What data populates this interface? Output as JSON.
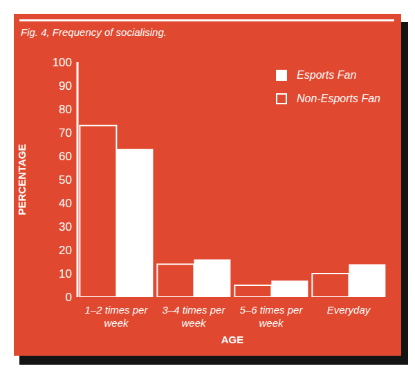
{
  "chart_data": {
    "type": "bar",
    "title": "Fig. 4, Frequency of socialising.",
    "x_label": "AGE",
    "y_label": "PERCENTAGE",
    "categories": [
      "1–2 times per week",
      "3–4 times per week",
      "5–6 times per week",
      "Everyday"
    ],
    "series": [
      {
        "name": "Esports Fan",
        "color": "#ffffff",
        "marker": "filled",
        "values": [
          63,
          16,
          7,
          14
        ]
      },
      {
        "name": "Non-Esports Fan",
        "color": "#ffffff",
        "marker": "hollow",
        "values": [
          73,
          14,
          5,
          10
        ]
      }
    ],
    "ylim": [
      0,
      100
    ],
    "yticks": [
      0,
      10,
      20,
      30,
      40,
      50,
      60,
      70,
      80,
      90,
      100
    ],
    "grid": false,
    "legend": "upper right"
  }
}
